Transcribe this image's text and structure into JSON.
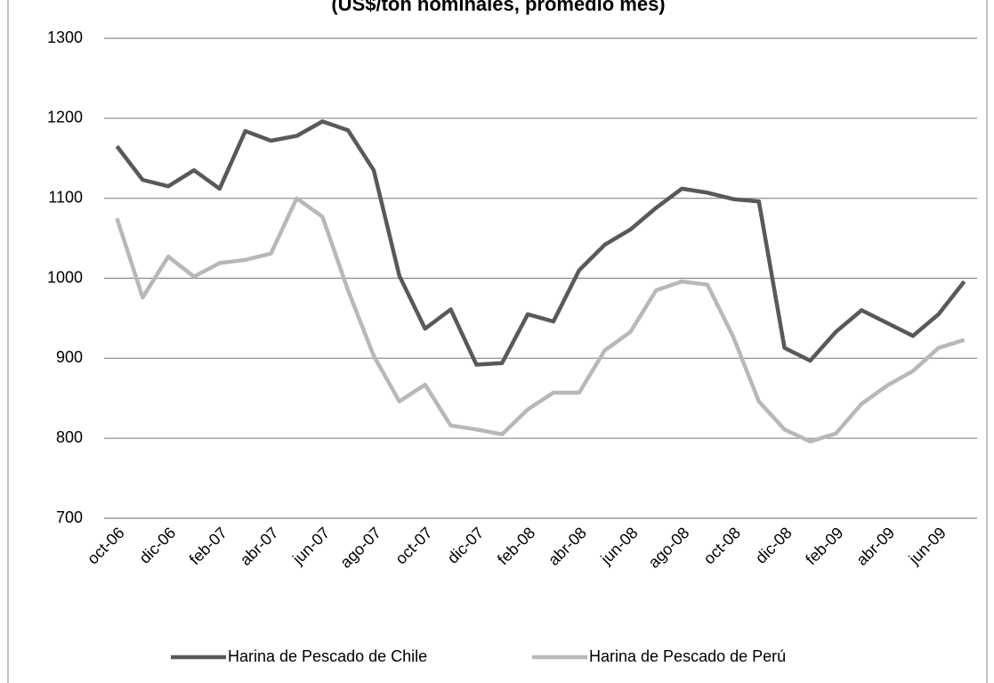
{
  "chart_data": {
    "type": "line",
    "title": "(US$/ton nominales, promedio mes)",
    "categories": [
      "oct-06",
      null,
      "dic-06",
      null,
      "feb-07",
      null,
      "abr-07",
      null,
      "jun-07",
      null,
      "ago-07",
      null,
      "oct-07",
      null,
      "dic-07",
      null,
      "feb-08",
      null,
      "abr-08",
      null,
      "jun-08",
      null,
      "ago-08",
      null,
      "oct-08",
      null,
      "dic-08",
      null,
      "feb-09",
      null,
      "abr-09",
      null,
      "jun-09",
      null
    ],
    "series": [
      {
        "name": "Harina de Pescado de Chile",
        "color": "#595959",
        "values": [
          1165,
          1123,
          1115,
          1135,
          1112,
          1184,
          1172,
          1178,
          1196,
          1185,
          1135,
          1003,
          937,
          961,
          892,
          894,
          955,
          946,
          1010,
          1042,
          1061,
          1088,
          1112,
          1107,
          1099,
          1096,
          913,
          897,
          933,
          960,
          944,
          928,
          955,
          996
        ]
      },
      {
        "name": "Harina de Pescado de Perú",
        "color": "#b8b8b8",
        "values": [
          1075,
          976,
          1027,
          1002,
          1019,
          1023,
          1031,
          1100,
          1077,
          985,
          903,
          846,
          867,
          816,
          811,
          805,
          836,
          857,
          857,
          910,
          933,
          985,
          996,
          992,
          927,
          846,
          811,
          796,
          806,
          843,
          866,
          884,
          913,
          923
        ]
      }
    ],
    "ylim": [
      700,
      1300
    ],
    "yticks": [
      700,
      800,
      900,
      1000,
      1100,
      1200,
      1300
    ],
    "grid": true,
    "legend": "bottom"
  }
}
